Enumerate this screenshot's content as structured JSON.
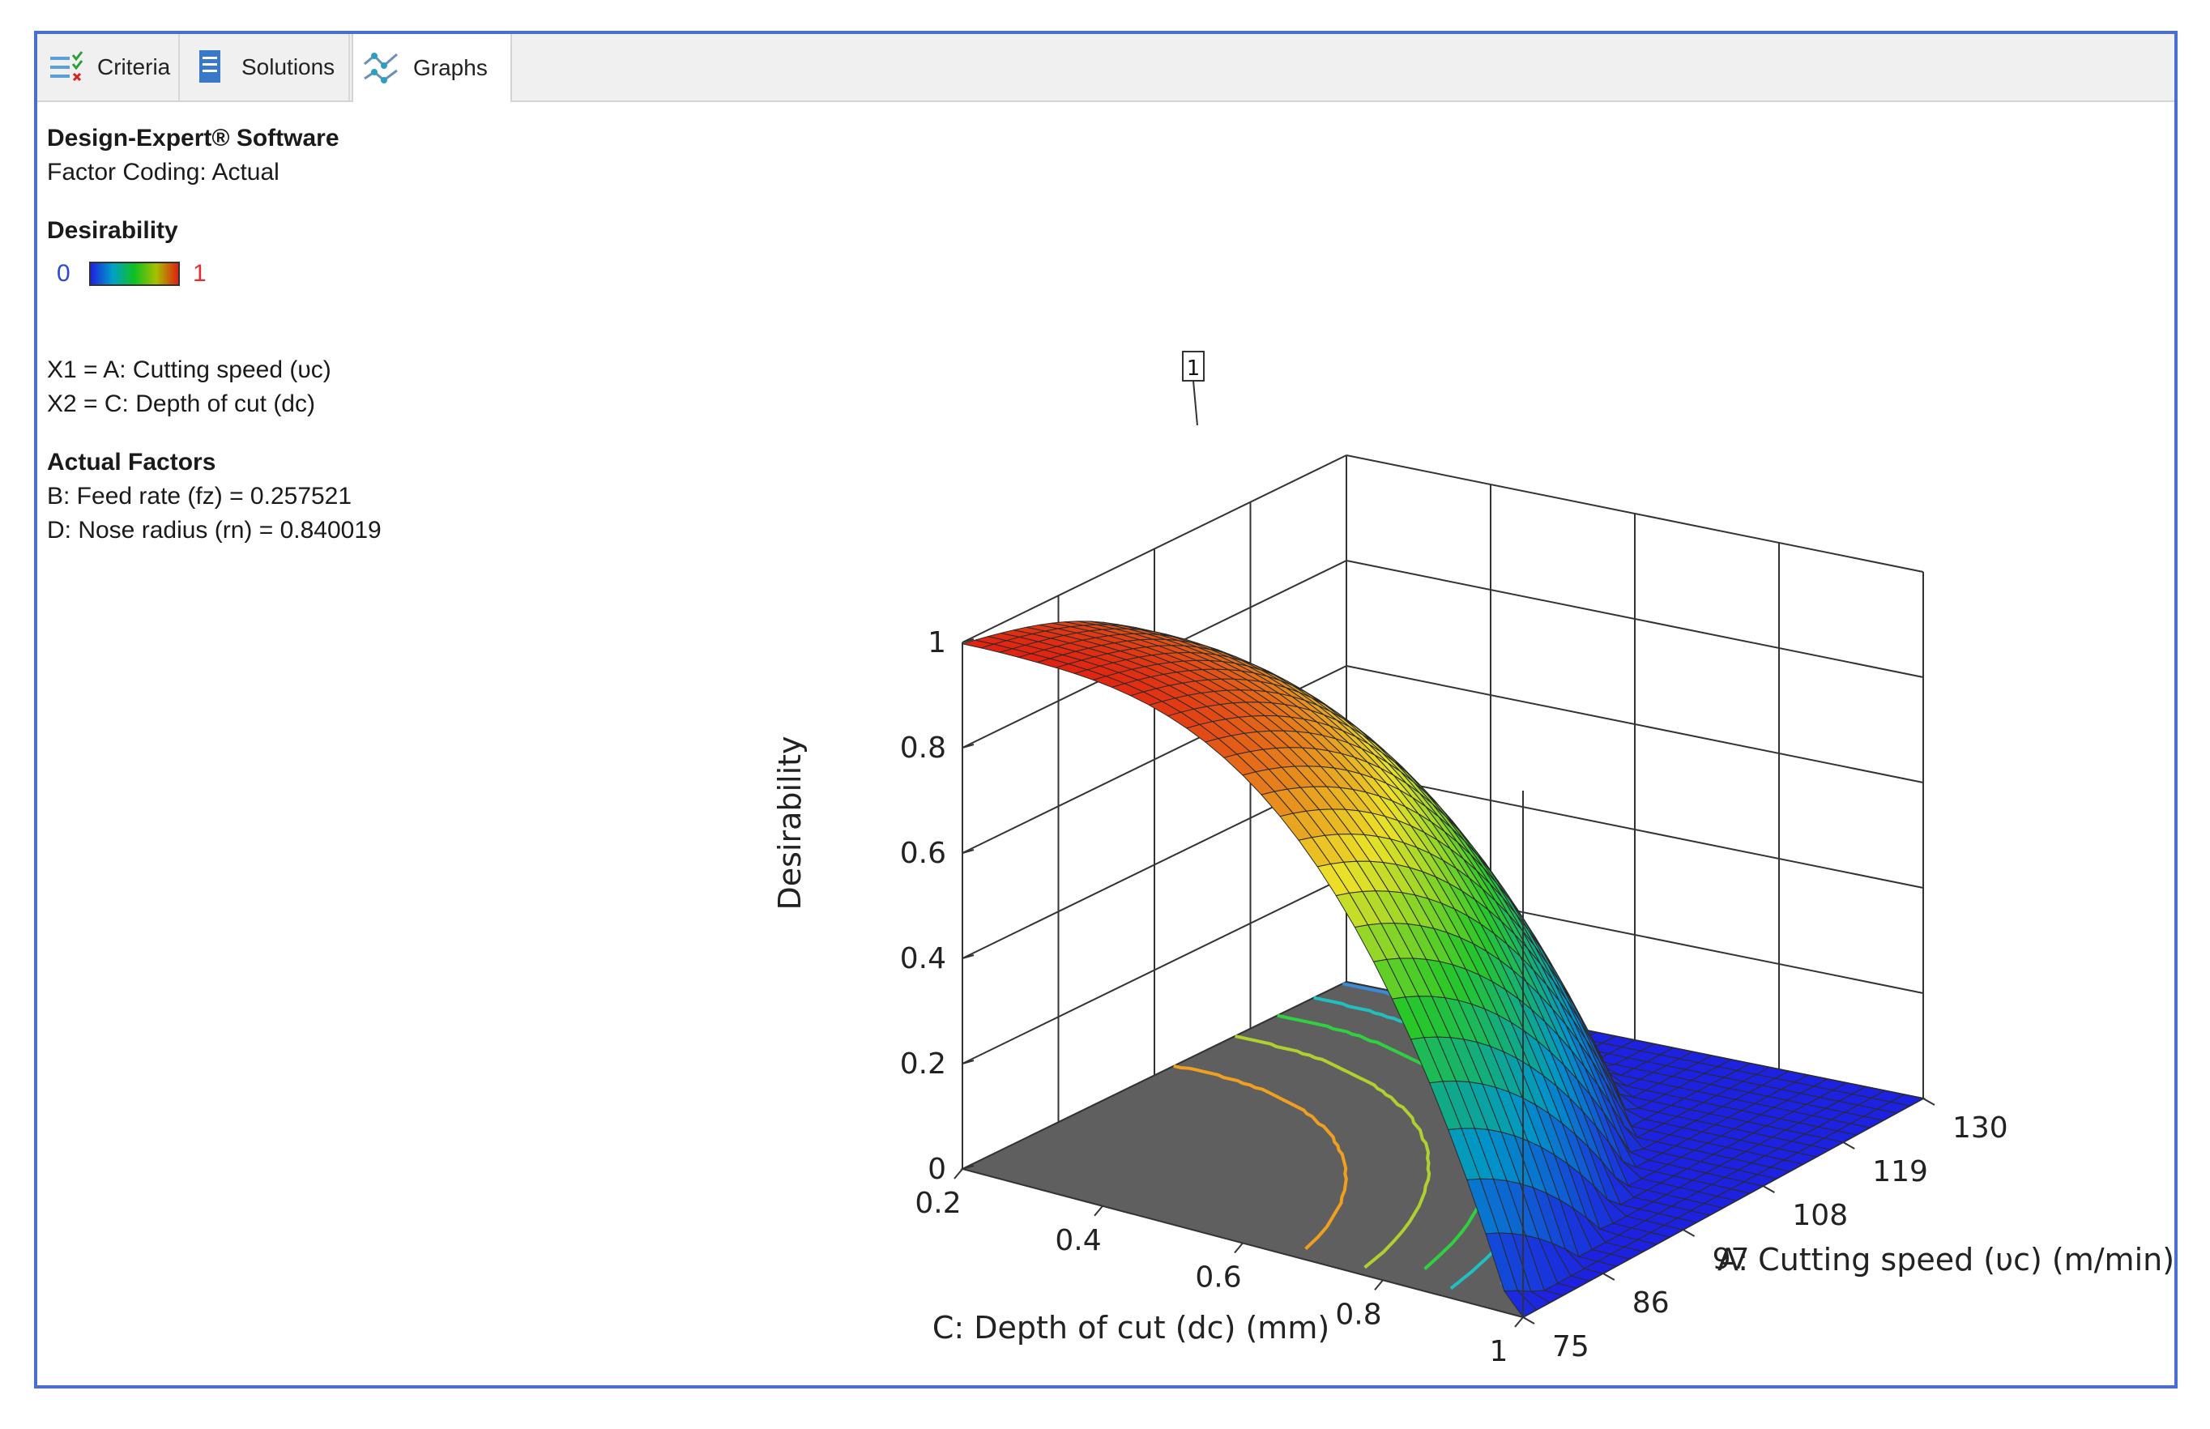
{
  "tabs": [
    {
      "label": "Criteria",
      "icon": "criteria-icon"
    },
    {
      "label": "Solutions",
      "icon": "solutions-icon"
    },
    {
      "label": "Graphs",
      "icon": "graphs-icon"
    }
  ],
  "info": {
    "software": "Design-Expert® Software",
    "factor_coding": "Factor Coding: Actual",
    "legend_title": "Desirability",
    "legend_min": "0",
    "legend_max": "1",
    "x1": "X1 = A: Cutting speed (υc)",
    "x2": "X2 = C: Depth of cut (dc)",
    "actual_factors_title": "Actual Factors",
    "factor_b": "B: Feed rate (fz) = 0.257521",
    "factor_d": "D: Nose radius (rn) = 0.840019"
  },
  "colors": {
    "frame": "#4a6fd1",
    "floor": "#5f5f5f",
    "low": "#1d22e0",
    "high": "#e02010"
  },
  "chart_data": {
    "type": "surface-3d",
    "z_label": "Desirability",
    "x_label": "A: Cutting speed (υc) (m/min)",
    "y_label": "C: Depth of cut (dc) (mm)",
    "z_ticks": [
      "0",
      "0.2",
      "0.4",
      "0.6",
      "0.8",
      "1"
    ],
    "x_ticks": [
      "75",
      "86",
      "97",
      "108",
      "119",
      "130"
    ],
    "y_ticks": [
      "0.2",
      "0.4",
      "0.6",
      "0.8",
      "1"
    ],
    "z_range": [
      0,
      1
    ],
    "x_range": [
      75,
      130
    ],
    "y_range": [
      0.2,
      1
    ],
    "marker": "1"
  }
}
